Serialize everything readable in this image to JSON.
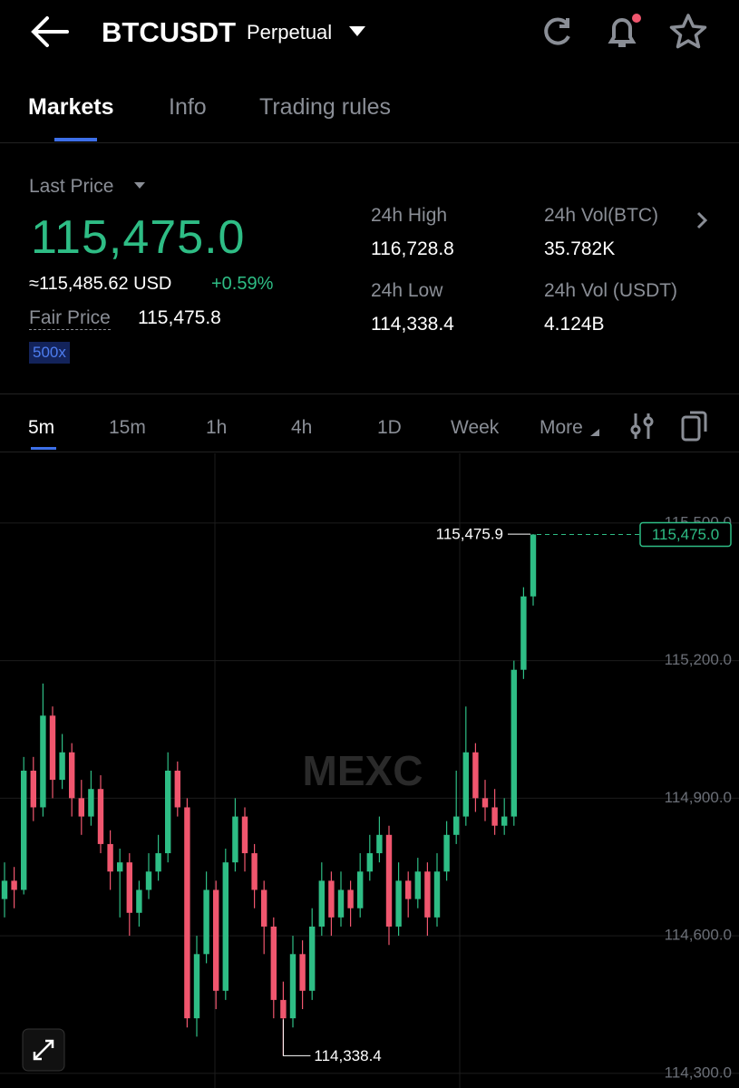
{
  "header": {
    "symbol": "BTCUSDT",
    "contract": "Perpetual"
  },
  "tabs": [
    "Markets",
    "Info",
    "Trading rules"
  ],
  "ticker": {
    "last_price_label": "Last Price",
    "last_price": "115,475.0",
    "usd_price": "≈115,485.62 USD",
    "change": "+0.59%",
    "fair_price_label": "Fair Price",
    "fair_price": "115,475.8",
    "leverage": "500x",
    "high_label": "24h High",
    "high": "116,728.8",
    "low_label": "24h Low",
    "low": "114,338.4",
    "vol_btc_label": "24h Vol(BTC)",
    "vol_btc": "35.782K",
    "vol_usdt_label": "24h Vol (USDT)",
    "vol_usdt": "4.124B"
  },
  "intervals": [
    "5m",
    "15m",
    "1h",
    "4h",
    "1D",
    "Week",
    "More"
  ],
  "chart_data": {
    "type": "candlestick",
    "watermark": "MEXC",
    "up_color": "#2ebd85",
    "down_color": "#f0566e",
    "ylim": [
      114268,
      115652
    ],
    "yticks": [
      {
        "value": 114300,
        "label": "114,300.0"
      },
      {
        "value": 114600,
        "label": "114,600.0"
      },
      {
        "value": 114900,
        "label": "114,900.0"
      },
      {
        "value": 115200,
        "label": "115,200.0"
      },
      {
        "value": 115500,
        "label": "115,500.0"
      }
    ],
    "grid": true,
    "open": [
      114680,
      114720,
      114700,
      114960,
      114880,
      115080,
      114940,
      115000,
      114900,
      114860,
      114920,
      114800,
      114740,
      114760,
      114650,
      114700,
      114740,
      114780,
      114960,
      114880,
      114420,
      114560,
      114700,
      114480,
      114760,
      114860,
      114780,
      114700,
      114620,
      114460,
      114420,
      114560,
      114480,
      114620,
      114720,
      114640,
      114700,
      114660,
      114740,
      114780,
      114820,
      114620,
      114720,
      114680,
      114740,
      114640,
      114740,
      114820,
      114860,
      115000,
      114900,
      114880,
      114840,
      114860,
      115180,
      115340
    ],
    "high": [
      114760,
      114750,
      114990,
      114990,
      115150,
      115100,
      115040,
      115020,
      114940,
      114960,
      114950,
      114830,
      114790,
      114780,
      114720,
      114780,
      114820,
      115000,
      114980,
      114900,
      114600,
      114740,
      114720,
      114790,
      114900,
      114880,
      114800,
      114720,
      114640,
      114500,
      114600,
      114590,
      114660,
      114760,
      114740,
      114740,
      114720,
      114780,
      114820,
      114860,
      114840,
      114760,
      114740,
      114770,
      114760,
      114780,
      114850,
      114960,
      115100,
      115020,
      114940,
      114920,
      114900,
      115200,
      115360,
      115475.9
    ],
    "low": [
      114640,
      114660,
      114690,
      114850,
      114860,
      114900,
      114920,
      114860,
      114820,
      114840,
      114780,
      114700,
      114640,
      114600,
      114620,
      114680,
      114720,
      114760,
      114860,
      114400,
      114380,
      114540,
      114440,
      114460,
      114740,
      114740,
      114660,
      114560,
      114420,
      114338.4,
      114400,
      114440,
      114460,
      114600,
      114600,
      114620,
      114620,
      114640,
      114720,
      114760,
      114580,
      114600,
      114640,
      114660,
      114600,
      114620,
      114720,
      114800,
      114840,
      114870,
      114850,
      114820,
      114820,
      114840,
      115160,
      115320
    ],
    "close": [
      114720,
      114700,
      114960,
      114880,
      115080,
      114940,
      115000,
      114900,
      114860,
      114920,
      114800,
      114740,
      114760,
      114650,
      114700,
      114740,
      114780,
      114960,
      114880,
      114420,
      114560,
      114700,
      114480,
      114760,
      114860,
      114780,
      114700,
      114620,
      114460,
      114420,
      114560,
      114480,
      114620,
      114720,
      114640,
      114700,
      114660,
      114740,
      114780,
      114820,
      114620,
      114720,
      114680,
      114740,
      114640,
      114740,
      114820,
      114860,
      115000,
      114900,
      114880,
      114840,
      114860,
      115180,
      115340,
      115475
    ],
    "max_marker": {
      "value": 115475.9,
      "label": "115,475.9"
    },
    "min_marker": {
      "value": 114338.4,
      "label": "114,338.4"
    },
    "last_price": {
      "value": 115475.0,
      "label": "115,475.0"
    }
  }
}
